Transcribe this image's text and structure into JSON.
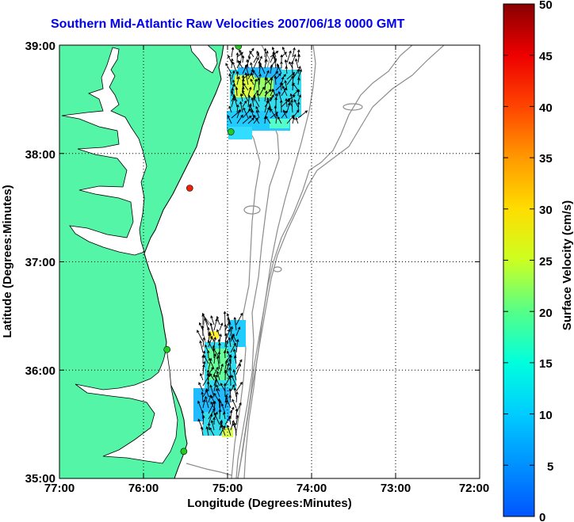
{
  "title": "Southern Mid-Atlantic Raw Velocities 2007/06/18 0000 GMT",
  "x_axis": {
    "label": "Longitude (Degrees:Minutes)",
    "ticks": [
      "77:00",
      "76:00",
      "75:00",
      "74:00",
      "73:00",
      "72:00"
    ]
  },
  "y_axis": {
    "label": "Latitude (Degrees:Minutes)",
    "ticks": [
      "39:00",
      "38:00",
      "37:00",
      "36:00",
      "35:00"
    ]
  },
  "colorbar": {
    "label": "Surface Velocity (cm/s)",
    "ticks": [
      "50",
      "45",
      "40",
      "35",
      "30",
      "25",
      "20",
      "15",
      "10",
      "5",
      "0"
    ]
  },
  "colors": {
    "land": "#55f5a8",
    "title": "#0000ee",
    "grid": "#000000",
    "bathymetry": "#8c8c8c",
    "station_green": "#22cc22",
    "station_red": "#ee2200"
  },
  "map": {
    "lon_range": [
      -77,
      -72
    ],
    "lat_range": [
      35,
      39
    ],
    "stations": [
      {
        "lon": -74.87,
        "lat": 38.99,
        "color": "green"
      },
      {
        "lon": -74.96,
        "lat": 38.2,
        "color": "green"
      },
      {
        "lon": -75.45,
        "lat": 37.68,
        "color": "red"
      },
      {
        "lon": -75.72,
        "lat": 36.19,
        "color": "green"
      },
      {
        "lon": -75.52,
        "lat": 35.25,
        "color": "green"
      }
    ],
    "velocity_fields": [
      {
        "region": "north",
        "lon_range": [
          -74.95,
          -74.0
        ],
        "lat_range": [
          38.2,
          38.95
        ],
        "speed_range_cms": [
          6,
          27
        ]
      },
      {
        "region": "south",
        "lon_range": [
          -75.4,
          -74.75
        ],
        "lat_range": [
          35.3,
          36.45
        ],
        "speed_range_cms": [
          6,
          26
        ]
      }
    ]
  }
}
